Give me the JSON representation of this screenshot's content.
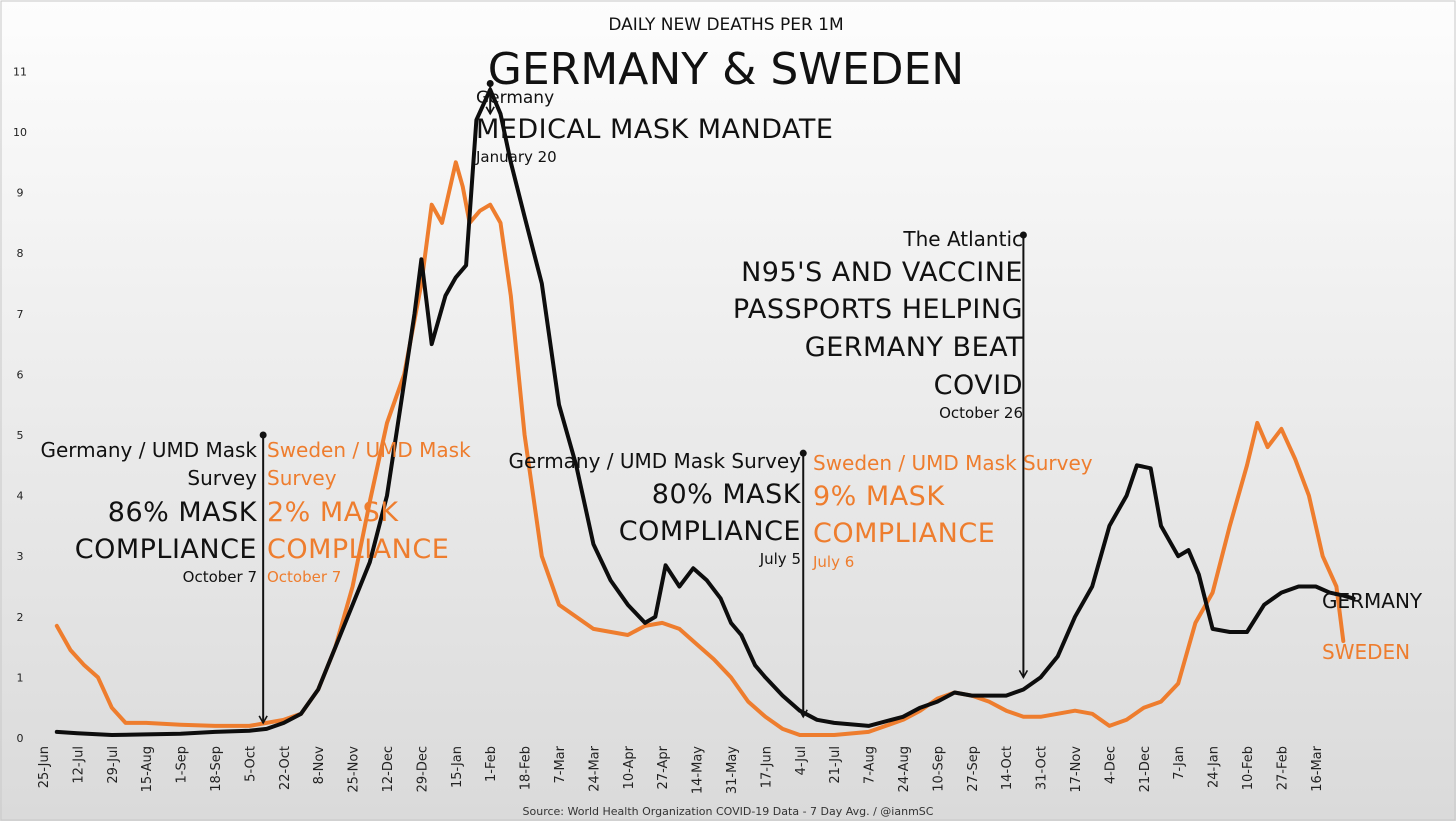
{
  "chart_data": {
    "type": "line",
    "title": "GERMANY & SWEDEN",
    "subtitle": "DAILY NEW DEATHS PER 1M",
    "source": "Source: World Health Organization COVID-19 Data - 7  Day Avg. / @ianmSC",
    "xlabel": "",
    "ylabel": "",
    "ylim": [
      0,
      11
    ],
    "yticks": [
      "0",
      "1",
      "2",
      "3",
      "4",
      "5",
      "6",
      "7",
      "8",
      "9",
      "10",
      "11"
    ],
    "xticks": [
      "25-Jun",
      "12-Jul",
      "29-Jul",
      "15-Aug",
      "1-Sep",
      "18-Sep",
      "5-Oct",
      "22-Oct",
      "8-Nov",
      "25-Nov",
      "12-Dec",
      "29-Dec",
      "15-Jan",
      "1-Feb",
      "18-Feb",
      "7-Mar",
      "24-Mar",
      "10-Apr",
      "27-Apr",
      "14-May",
      "31-May",
      "17-Jun",
      "4-Jul",
      "21-Jul",
      "7-Aug",
      "24-Aug",
      "10-Sep",
      "27-Sep",
      "14-Oct",
      "31-Oct",
      "17-Nov",
      "4-Dec",
      "21-Dec",
      "7-Jan",
      "24-Jan",
      "10-Feb",
      "27-Feb",
      "16-Mar"
    ],
    "series": [
      {
        "name": "SWEDEN",
        "color": "#ee7d2e",
        "points": [
          [
            0.4,
            1.85
          ],
          [
            0.8,
            1.45
          ],
          [
            1.2,
            1.2
          ],
          [
            1.6,
            1.0
          ],
          [
            2.0,
            0.5
          ],
          [
            2.4,
            0.25
          ],
          [
            3.0,
            0.25
          ],
          [
            4.0,
            0.22
          ],
          [
            5.0,
            0.2
          ],
          [
            6.0,
            0.2
          ],
          [
            6.5,
            0.25
          ],
          [
            7.0,
            0.3
          ],
          [
            7.5,
            0.4
          ],
          [
            8.0,
            0.8
          ],
          [
            8.5,
            1.5
          ],
          [
            9.0,
            2.5
          ],
          [
            9.5,
            3.9
          ],
          [
            10.0,
            5.2
          ],
          [
            10.5,
            6.0
          ],
          [
            11.0,
            7.5
          ],
          [
            11.3,
            8.8
          ],
          [
            11.6,
            8.5
          ],
          [
            12.0,
            9.5
          ],
          [
            12.2,
            9.1
          ],
          [
            12.4,
            8.5
          ],
          [
            12.7,
            8.7
          ],
          [
            13.0,
            8.8
          ],
          [
            13.3,
            8.5
          ],
          [
            13.6,
            7.3
          ],
          [
            14.0,
            5.0
          ],
          [
            14.5,
            3.0
          ],
          [
            15.0,
            2.2
          ],
          [
            16.0,
            1.8
          ],
          [
            17.0,
            1.7
          ],
          [
            17.5,
            1.85
          ],
          [
            18.0,
            1.9
          ],
          [
            18.5,
            1.8
          ],
          [
            19.0,
            1.55
          ],
          [
            19.5,
            1.3
          ],
          [
            20.0,
            1.0
          ],
          [
            20.5,
            0.6
          ],
          [
            21.0,
            0.35
          ],
          [
            21.5,
            0.15
          ],
          [
            22.0,
            0.05
          ],
          [
            23.0,
            0.05
          ],
          [
            24.0,
            0.1
          ],
          [
            25.0,
            0.3
          ],
          [
            25.5,
            0.45
          ],
          [
            26.0,
            0.65
          ],
          [
            26.5,
            0.75
          ],
          [
            27.0,
            0.7
          ],
          [
            27.5,
            0.6
          ],
          [
            28.0,
            0.45
          ],
          [
            28.5,
            0.35
          ],
          [
            29.0,
            0.35
          ],
          [
            30.0,
            0.45
          ],
          [
            30.5,
            0.4
          ],
          [
            31.0,
            0.2
          ],
          [
            31.5,
            0.3
          ],
          [
            32.0,
            0.5
          ],
          [
            32.5,
            0.6
          ],
          [
            33.0,
            0.9
          ],
          [
            33.5,
            1.9
          ],
          [
            34.0,
            2.4
          ],
          [
            34.5,
            3.5
          ],
          [
            35.0,
            4.5
          ],
          [
            35.3,
            5.2
          ],
          [
            35.6,
            4.8
          ],
          [
            36.0,
            5.1
          ],
          [
            36.4,
            4.6
          ],
          [
            36.8,
            4.0
          ],
          [
            37.2,
            3.0
          ],
          [
            37.6,
            2.5
          ],
          [
            37.8,
            1.6
          ]
        ]
      },
      {
        "name": "GERMANY",
        "color": "#0d0d0d",
        "points": [
          [
            0.4,
            0.1
          ],
          [
            1.0,
            0.08
          ],
          [
            2.0,
            0.05
          ],
          [
            3.0,
            0.06
          ],
          [
            4.0,
            0.07
          ],
          [
            5.0,
            0.1
          ],
          [
            6.0,
            0.12
          ],
          [
            6.5,
            0.15
          ],
          [
            7.0,
            0.25
          ],
          [
            7.5,
            0.4
          ],
          [
            8.0,
            0.8
          ],
          [
            8.5,
            1.5
          ],
          [
            9.0,
            2.2
          ],
          [
            9.5,
            2.9
          ],
          [
            10.0,
            4.0
          ],
          [
            10.4,
            5.5
          ],
          [
            10.8,
            7.0
          ],
          [
            11.0,
            7.9
          ],
          [
            11.3,
            6.5
          ],
          [
            11.7,
            7.3
          ],
          [
            12.0,
            7.6
          ],
          [
            12.3,
            7.8
          ],
          [
            12.6,
            10.2
          ],
          [
            13.0,
            10.7
          ],
          [
            13.3,
            10.3
          ],
          [
            13.6,
            9.5
          ],
          [
            14.0,
            8.6
          ],
          [
            14.5,
            7.5
          ],
          [
            15.0,
            5.5
          ],
          [
            15.5,
            4.5
          ],
          [
            16.0,
            3.2
          ],
          [
            16.5,
            2.6
          ],
          [
            17.0,
            2.2
          ],
          [
            17.5,
            1.9
          ],
          [
            17.8,
            2.0
          ],
          [
            18.1,
            2.85
          ],
          [
            18.5,
            2.5
          ],
          [
            18.9,
            2.8
          ],
          [
            19.3,
            2.6
          ],
          [
            19.7,
            2.3
          ],
          [
            20.0,
            1.9
          ],
          [
            20.3,
            1.7
          ],
          [
            20.7,
            1.2
          ],
          [
            21.0,
            1.0
          ],
          [
            21.5,
            0.7
          ],
          [
            22.0,
            0.45
          ],
          [
            22.5,
            0.3
          ],
          [
            23.0,
            0.25
          ],
          [
            24.0,
            0.2
          ],
          [
            25.0,
            0.35
          ],
          [
            25.5,
            0.5
          ],
          [
            26.0,
            0.6
          ],
          [
            26.5,
            0.75
          ],
          [
            27.0,
            0.7
          ],
          [
            27.5,
            0.7
          ],
          [
            28.0,
            0.7
          ],
          [
            28.5,
            0.8
          ],
          [
            29.0,
            1.0
          ],
          [
            29.5,
            1.35
          ],
          [
            30.0,
            2.0
          ],
          [
            30.5,
            2.5
          ],
          [
            31.0,
            3.5
          ],
          [
            31.5,
            4.0
          ],
          [
            31.8,
            4.5
          ],
          [
            32.2,
            4.45
          ],
          [
            32.5,
            3.5
          ],
          [
            33.0,
            3.0
          ],
          [
            33.3,
            3.1
          ],
          [
            33.6,
            2.7
          ],
          [
            34.0,
            1.8
          ],
          [
            34.5,
            1.75
          ],
          [
            35.0,
            1.75
          ],
          [
            35.5,
            2.2
          ],
          [
            36.0,
            2.4
          ],
          [
            36.5,
            2.5
          ],
          [
            37.0,
            2.5
          ],
          [
            37.4,
            2.4
          ],
          [
            37.8,
            2.35
          ],
          [
            38.1,
            2.3
          ]
        ]
      }
    ],
    "annotations": [
      {
        "at": 6.4,
        "y": 5.0,
        "header_left": "Germany / UMD Mask Survey",
        "header_right": "Sweden / UMD Mask Survey",
        "left": "86% MASK COMPLIANCE",
        "right": "2% MASK COMPLIANCE",
        "date_left": "October 7",
        "date_right": "October 7"
      },
      {
        "at": 13.0,
        "y": 10.8,
        "header": "Germany",
        "text": "MEDICAL MASK MANDATE",
        "date": "January 20"
      },
      {
        "at": 22.1,
        "y": 4.7,
        "header_left": "Germany / UMD Mask Survey",
        "header_right": "Sweden / UMD Mask Survey",
        "left": "80% MASK COMPLIANCE",
        "right": "9% MASK COMPLIANCE",
        "date_left": "July 5",
        "date_right": "July 6"
      },
      {
        "at": 28.5,
        "y": 8.3,
        "header": "The Atlantic",
        "text": "N95'S AND VACCINE PASSPORTS HELPING GERMANY BEAT COVID",
        "date": "October 26"
      }
    ]
  },
  "labels": {
    "ann1": {
      "de_head_a": "Germany / UMD Mask",
      "de_head_b": "Survey",
      "se_head_a": "Sweden / UMD Mask",
      "se_head_b": "Survey",
      "de_big_a": "86% MASK",
      "de_big_b": "COMPLIANCE",
      "se_big_a": "2% MASK",
      "se_big_b": "COMPLIANCE",
      "de_date": "October 7",
      "se_date": "October 7"
    },
    "ann2": {
      "head": "Germany",
      "big": "MEDICAL MASK MANDATE",
      "date": "January 20"
    },
    "ann3": {
      "de_head": "Germany / UMD Mask Survey",
      "se_head": "Sweden / UMD Mask Survey",
      "de_big_a": "80% MASK",
      "de_big_b": "COMPLIANCE",
      "se_big_a": "9% MASK",
      "se_big_b": "COMPLIANCE",
      "de_date": "July 5",
      "se_date": "July 6"
    },
    "ann4": {
      "head": "The Atlantic",
      "line1": "N95'S AND VACCINE",
      "line2": "PASSPORTS HELPING",
      "line3": "GERMANY BEAT",
      "line4": "COVID",
      "date": "October 26"
    },
    "end_germany": "GERMANY",
    "end_sweden": "SWEDEN"
  }
}
